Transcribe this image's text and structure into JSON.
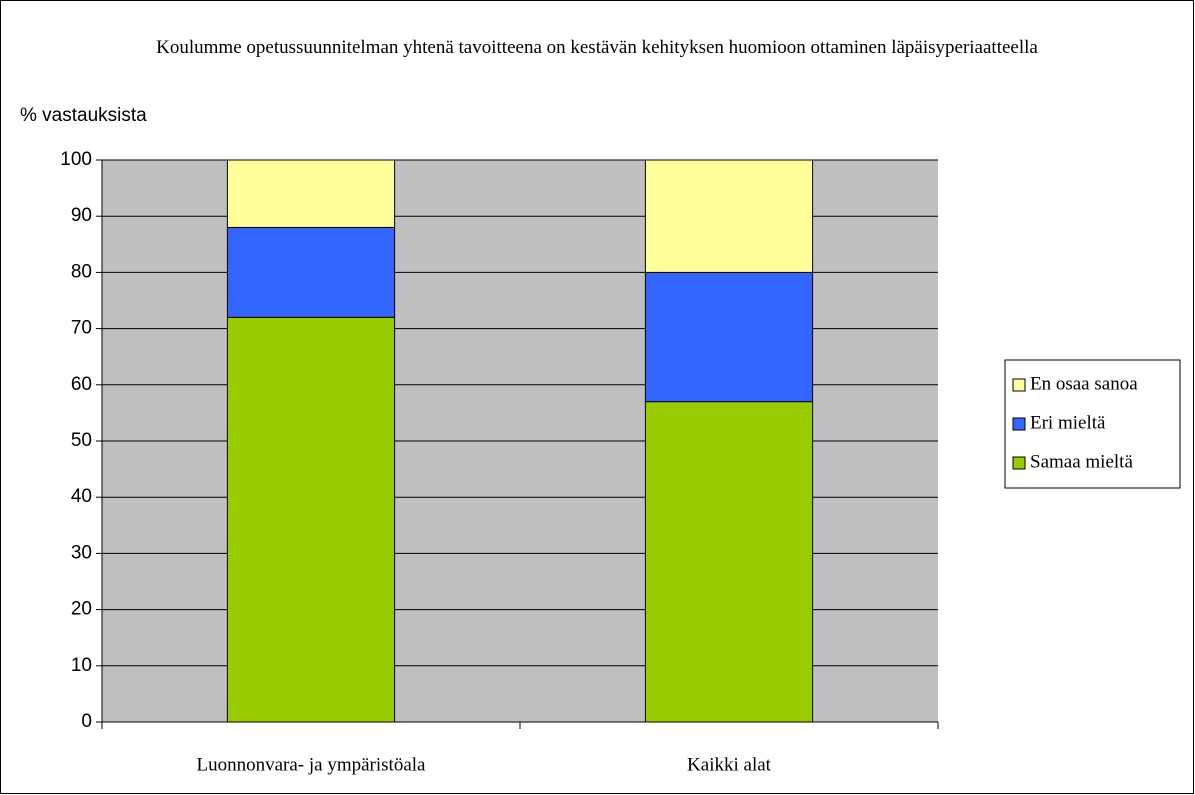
{
  "chart_data": {
    "type": "stacked_bar",
    "title": "Koulumme opetussuunnitelman yhtenä tavoitteena on kestävän kehityksen huomioon ottaminen läpäisyperiaatteella",
    "y_label": "% vastauksista",
    "categories": [
      "Luonnonvara- ja ympäristöala",
      "Kaikki alat"
    ],
    "series": [
      {
        "name": "Samaa mieltä",
        "color": "#99cc00",
        "values": [
          72,
          57
        ]
      },
      {
        "name": "Eri mieltä",
        "color": "#3366ff",
        "values": [
          16,
          23
        ]
      },
      {
        "name": "En osaa sanoa",
        "color": "#ffff99",
        "values": [
          12,
          20
        ]
      }
    ],
    "ylim": [
      0,
      100
    ],
    "yticks": [
      0,
      10,
      20,
      30,
      40,
      50,
      60,
      70,
      80,
      90,
      100
    ],
    "grid": true,
    "legend": "right"
  }
}
